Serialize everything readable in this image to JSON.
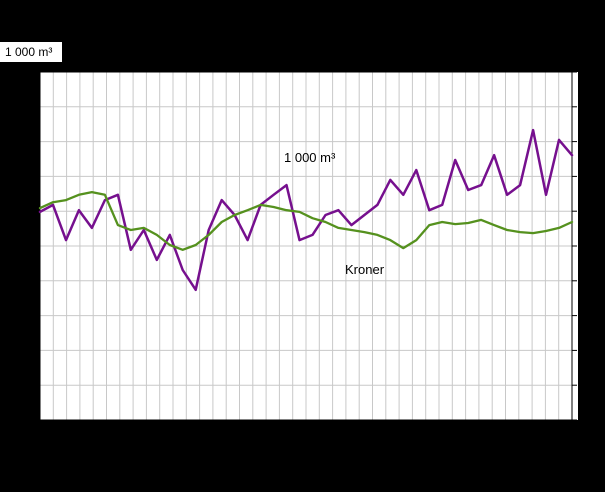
{
  "page": {
    "background_color": "#000000",
    "plot_background_color": "#ffffff",
    "gridline_color": "#c8c8c8",
    "frame_color": "#000000"
  },
  "chart_data": {
    "type": "line",
    "title": "",
    "xlabel": "",
    "ylabel": "",
    "unit_label": "1 000 m³",
    "axis_tick_labels_visible": false,
    "legend_position": "inline-annotations",
    "grid": {
      "vertical_divisions": 40,
      "horizontal_divisions": 10
    },
    "ylim": [
      0,
      100
    ],
    "annotations": [
      {
        "text": "1 000 m³",
        "series": "volume"
      },
      {
        "text": "Kroner",
        "series": "kroner"
      }
    ],
    "series": [
      {
        "name": "1 000 m³",
        "key": "volume",
        "color": "#76108e",
        "stroke_width": 2.5,
        "values": [
          59.8,
          61.8,
          51.7,
          60.3,
          55.2,
          63.2,
          64.7,
          48.9,
          54.6,
          46.0,
          53.2,
          43.1,
          37.4,
          54.6,
          63.2,
          58.9,
          51.7,
          61.8,
          64.7,
          67.5,
          51.7,
          53.2,
          58.9,
          60.3,
          56.0,
          58.9,
          61.8,
          69.0,
          64.7,
          71.8,
          60.3,
          61.8,
          74.7,
          66.1,
          67.5,
          76.1,
          64.7,
          67.5,
          83.3,
          64.7,
          80.5,
          76.1
        ]
      },
      {
        "name": "Kroner",
        "key": "kroner",
        "color": "#55911e",
        "stroke_width": 2.3,
        "values": [
          60.9,
          62.6,
          63.2,
          64.7,
          65.5,
          64.7,
          56.0,
          54.6,
          55.2,
          53.2,
          50.3,
          48.9,
          50.3,
          53.2,
          56.9,
          58.9,
          60.3,
          61.8,
          61.2,
          60.3,
          59.8,
          58.0,
          56.9,
          55.2,
          54.6,
          54.0,
          53.2,
          51.7,
          49.4,
          51.7,
          56.0,
          56.9,
          56.3,
          56.6,
          57.5,
          56.0,
          54.6,
          54.0,
          53.7,
          54.3,
          55.2,
          56.9
        ]
      }
    ]
  }
}
